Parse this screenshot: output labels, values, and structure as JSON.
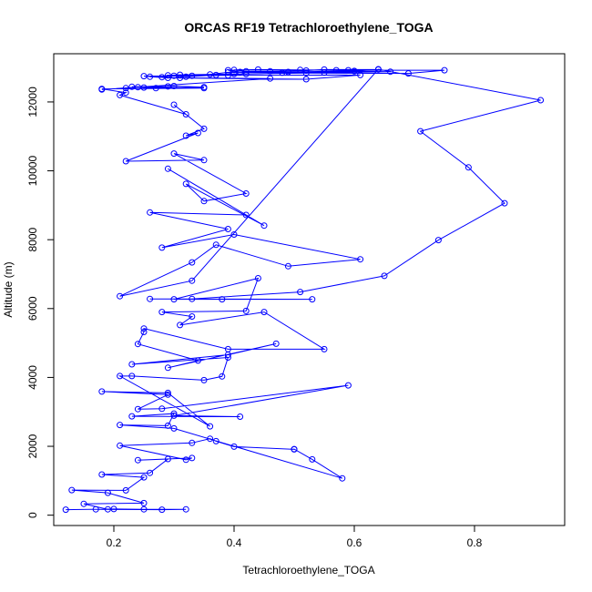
{
  "chart_data": {
    "type": "line",
    "title": "ORCAS RF19 Tetrachloroethylene_TOGA",
    "xlabel": "Tetrachloroethylene_TOGA",
    "ylabel": "Altitude (m)",
    "xlim": [
      0.1,
      0.95
    ],
    "ylim": [
      -300,
      13400
    ],
    "x_ticks": [
      0.2,
      0.4,
      0.6,
      0.8
    ],
    "x_tick_labels": [
      "0.2",
      "0.4",
      "0.6",
      "0.8"
    ],
    "y_ticks": [
      0,
      2000,
      4000,
      6000,
      8000,
      10000,
      12000
    ],
    "y_tick_labels": [
      "0",
      "2000",
      "4000",
      "6000",
      "8000",
      "10000",
      "12000"
    ],
    "grid": false,
    "legend": "none",
    "series": [
      {
        "color": "#0000ff",
        "marker": "open-circle",
        "points": [
          [
            0.12,
            160
          ],
          [
            0.2,
            180
          ],
          [
            0.25,
            170
          ],
          [
            0.32,
            170
          ],
          [
            0.28,
            160
          ],
          [
            0.17,
            170
          ],
          [
            0.19,
            170
          ],
          [
            0.15,
            330
          ],
          [
            0.25,
            350
          ],
          [
            0.19,
            650
          ],
          [
            0.13,
            730
          ],
          [
            0.22,
            720
          ],
          [
            0.25,
            1100
          ],
          [
            0.18,
            1180
          ],
          [
            0.26,
            1230
          ],
          [
            0.29,
            1630
          ],
          [
            0.24,
            1600
          ],
          [
            0.33,
            1660
          ],
          [
            0.32,
            1610
          ],
          [
            0.21,
            2020
          ],
          [
            0.33,
            2100
          ],
          [
            0.36,
            2220
          ],
          [
            0.37,
            2150
          ],
          [
            0.4,
            1990
          ],
          [
            0.5,
            1910
          ],
          [
            0.5,
            1920
          ],
          [
            0.53,
            1620
          ],
          [
            0.58,
            1070
          ],
          [
            0.3,
            2520
          ],
          [
            0.21,
            2620
          ],
          [
            0.29,
            2600
          ],
          [
            0.3,
            2950
          ],
          [
            0.23,
            2870
          ],
          [
            0.41,
            2860
          ],
          [
            0.3,
            2890
          ],
          [
            0.59,
            3770
          ],
          [
            0.28,
            3090
          ],
          [
            0.24,
            3080
          ],
          [
            0.29,
            3500
          ],
          [
            0.18,
            3590
          ],
          [
            0.29,
            3550
          ],
          [
            0.36,
            2580
          ],
          [
            0.21,
            4040
          ],
          [
            0.23,
            4040
          ],
          [
            0.35,
            3920
          ],
          [
            0.38,
            4030
          ],
          [
            0.39,
            4580
          ],
          [
            0.23,
            4380
          ],
          [
            0.39,
            4660
          ],
          [
            0.47,
            4980
          ],
          [
            0.29,
            4280
          ],
          [
            0.34,
            4490
          ],
          [
            0.24,
            4970
          ],
          [
            0.25,
            5320
          ],
          [
            0.25,
            5420
          ],
          [
            0.39,
            4820
          ],
          [
            0.55,
            4820
          ],
          [
            0.45,
            5900
          ],
          [
            0.31,
            5520
          ],
          [
            0.33,
            5770
          ],
          [
            0.28,
            5900
          ],
          [
            0.42,
            5930
          ],
          [
            0.44,
            6880
          ],
          [
            0.3,
            6270
          ],
          [
            0.38,
            6270
          ],
          [
            0.53,
            6270
          ],
          [
            0.26,
            6280
          ],
          [
            0.33,
            6280
          ],
          [
            0.51,
            6480
          ],
          [
            0.65,
            6950
          ],
          [
            0.74,
            7990
          ],
          [
            0.85,
            9060
          ],
          [
            0.79,
            10100
          ],
          [
            0.71,
            11150
          ],
          [
            0.91,
            12050
          ],
          [
            0.64,
            12950
          ],
          [
            0.33,
            6810
          ],
          [
            0.21,
            6360
          ],
          [
            0.33,
            7340
          ],
          [
            0.37,
            7850
          ],
          [
            0.49,
            7230
          ],
          [
            0.61,
            7430
          ],
          [
            0.4,
            8150
          ],
          [
            0.28,
            7770
          ],
          [
            0.39,
            8310
          ],
          [
            0.26,
            8790
          ],
          [
            0.42,
            8720
          ],
          [
            0.29,
            10060
          ],
          [
            0.45,
            8410
          ],
          [
            0.32,
            9620
          ],
          [
            0.35,
            9120
          ],
          [
            0.42,
            9340
          ],
          [
            0.3,
            10500
          ],
          [
            0.35,
            10310
          ],
          [
            0.22,
            10280
          ],
          [
            0.34,
            11100
          ],
          [
            0.32,
            11020
          ],
          [
            0.35,
            11220
          ],
          [
            0.3,
            11920
          ],
          [
            0.32,
            11640
          ],
          [
            0.21,
            12200
          ],
          [
            0.22,
            12270
          ],
          [
            0.18,
            12380
          ],
          [
            0.35,
            12400
          ],
          [
            0.23,
            12440
          ],
          [
            0.29,
            12450
          ],
          [
            0.3,
            12460
          ],
          [
            0.35,
            12430
          ],
          [
            0.27,
            12400
          ],
          [
            0.25,
            12420
          ],
          [
            0.24,
            12430
          ],
          [
            0.22,
            12400
          ],
          [
            0.18,
            12360
          ],
          [
            0.46,
            12680
          ],
          [
            0.31,
            12700
          ],
          [
            0.26,
            12730
          ],
          [
            0.29,
            12700
          ],
          [
            0.52,
            12660
          ],
          [
            0.61,
            12780
          ],
          [
            0.39,
            12770
          ],
          [
            0.25,
            12750
          ],
          [
            0.28,
            12720
          ],
          [
            0.3,
            12760
          ],
          [
            0.32,
            12730
          ],
          [
            0.37,
            12780
          ],
          [
            0.42,
            12810
          ],
          [
            0.55,
            12850
          ],
          [
            0.66,
            12880
          ],
          [
            0.6,
            12890
          ],
          [
            0.48,
            12850
          ],
          [
            0.39,
            12860
          ],
          [
            0.36,
            12800
          ],
          [
            0.33,
            12760
          ],
          [
            0.29,
            12770
          ],
          [
            0.31,
            12790
          ],
          [
            0.4,
            12810
          ],
          [
            0.52,
            12840
          ],
          [
            0.69,
            12830
          ],
          [
            0.75,
            12920
          ],
          [
            0.57,
            12920
          ],
          [
            0.44,
            12940
          ],
          [
            0.39,
            12920
          ],
          [
            0.41,
            12870
          ],
          [
            0.49,
            12870
          ],
          [
            0.6,
            12900
          ],
          [
            0.64,
            12940
          ],
          [
            0.55,
            12940
          ],
          [
            0.52,
            12910
          ],
          [
            0.46,
            12890
          ],
          [
            0.42,
            12890
          ],
          [
            0.4,
            12930
          ],
          [
            0.51,
            12930
          ],
          [
            0.59,
            12920
          ]
        ]
      }
    ]
  }
}
